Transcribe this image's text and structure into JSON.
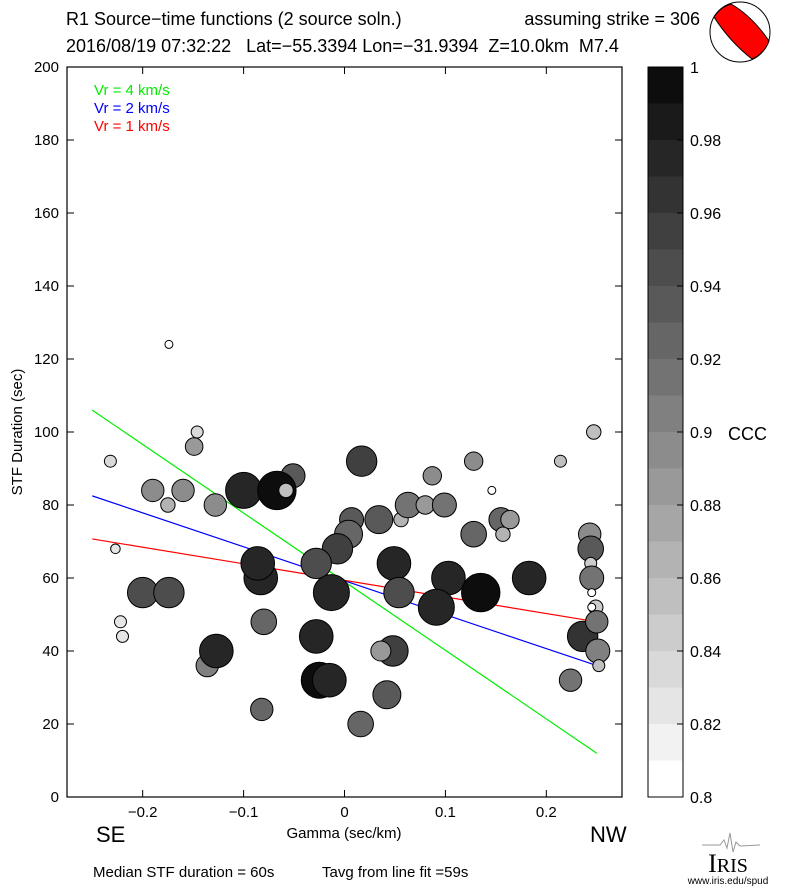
{
  "header": {
    "title": "R1 Source−time functions (2 source soln.)",
    "strike": "assuming strike = 306",
    "event": "2016/08/19 07:32:22   Lat=−55.3394 Lon=−31.9394  Z=10.0km  M7.4"
  },
  "footer": {
    "median": "Median STF duration = 60s",
    "tavg": "Tavg from line fit =59s",
    "logo_text": "IRIS",
    "logo_url": "www.iris.edu/spud"
  },
  "colors": {
    "vr4": "#00ee00",
    "vr2": "#0000ff",
    "vr1": "#ff0000",
    "beachball": "#ff0000"
  },
  "chart_data": {
    "type": "scatter",
    "xlabel": "Gamma (sec/km)",
    "ylabel": "STF Duration (sec)",
    "xlim": [
      -0.275,
      0.275
    ],
    "ylim": [
      0,
      200
    ],
    "xticks": [
      -0.2,
      -0.1,
      0,
      0.1,
      0.2
    ],
    "xtick_labels": [
      "−0.2",
      "−0.1",
      "0",
      "0.1",
      "0.2"
    ],
    "yticks": [
      0,
      20,
      40,
      60,
      80,
      100,
      120,
      140,
      160,
      180,
      200
    ],
    "direction_left": "SE",
    "direction_right": "NW",
    "legend": [
      {
        "label": "Vr = 4 km/s",
        "color": "#00ee00"
      },
      {
        "label": "Vr = 2 km/s",
        "color": "#0000ff"
      },
      {
        "label": "Vr = 1 km/s",
        "color": "#ff0000"
      }
    ],
    "lines": [
      {
        "name": "Vr = 4 km/s",
        "color": "#00ee00",
        "x": [
          -0.25,
          0.25
        ],
        "y": [
          106,
          12
        ]
      },
      {
        "name": "Vr = 2 km/s",
        "color": "#0000ff",
        "x": [
          -0.25,
          0.25
        ],
        "y": [
          82.5,
          36
        ]
      },
      {
        "name": "Vr = 1 km/s",
        "color": "#ff0000",
        "x": [
          -0.25,
          0.25
        ],
        "y": [
          70.7,
          48
        ]
      }
    ],
    "colorbar": {
      "label": "CCC",
      "range": [
        0.8,
        1.0
      ],
      "ticks": [
        0.8,
        0.82,
        0.84,
        0.86,
        0.88,
        0.9,
        0.92,
        0.94,
        0.96,
        0.98,
        1
      ],
      "tick_labels": [
        "0.8",
        "0.82",
        "0.84",
        "0.86",
        "0.88",
        "0.9",
        "0.92",
        "0.94",
        "0.96",
        "0.98",
        "1"
      ]
    },
    "points": [
      {
        "x": -0.174,
        "y": 124,
        "c": 0.8,
        "w": 1
      },
      {
        "x": -0.232,
        "y": 92,
        "c": 0.83,
        "w": 1.5
      },
      {
        "x": -0.149,
        "y": 96,
        "c": 0.88,
        "w": 2.2
      },
      {
        "x": -0.146,
        "y": 100,
        "c": 0.83,
        "w": 1.5
      },
      {
        "x": -0.19,
        "y": 84,
        "c": 0.89,
        "w": 2.8
      },
      {
        "x": -0.175,
        "y": 80,
        "c": 0.86,
        "w": 1.8
      },
      {
        "x": -0.16,
        "y": 84,
        "c": 0.89,
        "w": 2.8
      },
      {
        "x": -0.128,
        "y": 80,
        "c": 0.89,
        "w": 2.8
      },
      {
        "x": -0.1,
        "y": 84,
        "c": 0.97,
        "w": 4.5
      },
      {
        "x": -0.051,
        "y": 88,
        "c": 0.93,
        "w": 3
      },
      {
        "x": -0.067,
        "y": 84,
        "c": 0.99,
        "w": 4.8
      },
      {
        "x": -0.058,
        "y": 84,
        "c": 0.85,
        "w": 1.8
      },
      {
        "x": -0.227,
        "y": 68,
        "c": 0.82,
        "w": 1.2
      },
      {
        "x": 0.017,
        "y": 92,
        "c": 0.95,
        "w": 3.8
      },
      {
        "x": 0.128,
        "y": 92,
        "c": 0.89,
        "w": 2.3
      },
      {
        "x": 0.214,
        "y": 92,
        "c": 0.85,
        "w": 1.5
      },
      {
        "x": 0.247,
        "y": 100,
        "c": 0.85,
        "w": 1.8
      },
      {
        "x": 0.087,
        "y": 88,
        "c": 0.89,
        "w": 2.3
      },
      {
        "x": 0.146,
        "y": 84,
        "c": 0.8,
        "w": 1
      },
      {
        "x": 0.056,
        "y": 76,
        "c": 0.86,
        "w": 1.8
      },
      {
        "x": 0.007,
        "y": 76,
        "c": 0.93,
        "w": 3
      },
      {
        "x": 0.034,
        "y": 76,
        "c": 0.93,
        "w": 3.5
      },
      {
        "x": 0.063,
        "y": 80,
        "c": 0.91,
        "w": 3.2
      },
      {
        "x": 0.08,
        "y": 80,
        "c": 0.88,
        "w": 2.3
      },
      {
        "x": 0.099,
        "y": 80,
        "c": 0.91,
        "w": 3
      },
      {
        "x": 0.155,
        "y": 76,
        "c": 0.92,
        "w": 3
      },
      {
        "x": 0.164,
        "y": 76,
        "c": 0.88,
        "w": 2.3
      },
      {
        "x": 0.157,
        "y": 72,
        "c": 0.86,
        "w": 1.8
      },
      {
        "x": 0.128,
        "y": 72,
        "c": 0.92,
        "w": 3.2
      },
      {
        "x": 0.004,
        "y": 72,
        "c": 0.92,
        "w": 3.5
      },
      {
        "x": -0.007,
        "y": 68,
        "c": 0.95,
        "w": 3.8
      },
      {
        "x": -0.028,
        "y": 64,
        "c": 0.94,
        "w": 3.8
      },
      {
        "x": 0.049,
        "y": 64,
        "c": 0.97,
        "w": 4.2
      },
      {
        "x": -0.013,
        "y": 56,
        "c": 0.97,
        "w": 4.5
      },
      {
        "x": 0.054,
        "y": 56,
        "c": 0.94,
        "w": 3.8
      },
      {
        "x": 0.103,
        "y": 60,
        "c": 0.97,
        "w": 4.2
      },
      {
        "x": 0.091,
        "y": 52,
        "c": 0.97,
        "w": 4.5
      },
      {
        "x": 0.135,
        "y": 56,
        "c": 0.99,
        "w": 4.8
      },
      {
        "x": 0.183,
        "y": 60,
        "c": 0.97,
        "w": 4.2
      },
      {
        "x": 0.243,
        "y": 72,
        "c": 0.89,
        "w": 2.8
      },
      {
        "x": 0.244,
        "y": 68,
        "c": 0.93,
        "w": 3.2
      },
      {
        "x": 0.244,
        "y": 64,
        "c": 0.84,
        "w": 1.5
      },
      {
        "x": 0.245,
        "y": 60,
        "c": 0.91,
        "w": 3
      },
      {
        "x": 0.245,
        "y": 56,
        "c": 0.8,
        "w": 1
      },
      {
        "x": 0.249,
        "y": 52,
        "c": 0.84,
        "w": 1.8
      },
      {
        "x": 0.245,
        "y": 52,
        "c": 0.8,
        "w": 1
      },
      {
        "x": 0.236,
        "y": 44,
        "c": 0.96,
        "w": 3.8
      },
      {
        "x": 0.25,
        "y": 48,
        "c": 0.91,
        "w": 2.8
      },
      {
        "x": 0.251,
        "y": 40,
        "c": 0.9,
        "w": 3
      },
      {
        "x": 0.252,
        "y": 36,
        "c": 0.85,
        "w": 1.5
      },
      {
        "x": 0.224,
        "y": 32,
        "c": 0.91,
        "w": 2.8
      },
      {
        "x": -0.2,
        "y": 56,
        "c": 0.94,
        "w": 3.8
      },
      {
        "x": -0.174,
        "y": 56,
        "c": 0.94,
        "w": 3.8
      },
      {
        "x": -0.222,
        "y": 48,
        "c": 0.82,
        "w": 1.5
      },
      {
        "x": -0.22,
        "y": 44,
        "c": 0.82,
        "w": 1.5
      },
      {
        "x": -0.083,
        "y": 60,
        "c": 0.97,
        "w": 4.2
      },
      {
        "x": -0.086,
        "y": 64,
        "c": 0.97,
        "w": 4.2
      },
      {
        "x": -0.08,
        "y": 48,
        "c": 0.92,
        "w": 3.2
      },
      {
        "x": -0.136,
        "y": 36,
        "c": 0.9,
        "w": 2.8
      },
      {
        "x": -0.127,
        "y": 40,
        "c": 0.97,
        "w": 4.2
      },
      {
        "x": -0.028,
        "y": 44,
        "c": 0.97,
        "w": 4.2
      },
      {
        "x": 0.048,
        "y": 40,
        "c": 0.95,
        "w": 3.8
      },
      {
        "x": 0.036,
        "y": 40,
        "c": 0.88,
        "w": 2.5
      },
      {
        "x": -0.025,
        "y": 32,
        "c": 0.99,
        "w": 4.5
      },
      {
        "x": -0.015,
        "y": 32,
        "c": 0.97,
        "w": 4.2
      },
      {
        "x": -0.082,
        "y": 24,
        "c": 0.92,
        "w": 2.8
      },
      {
        "x": 0.042,
        "y": 28,
        "c": 0.93,
        "w": 3.5
      },
      {
        "x": 0.016,
        "y": 20,
        "c": 0.92,
        "w": 3.2
      }
    ]
  }
}
